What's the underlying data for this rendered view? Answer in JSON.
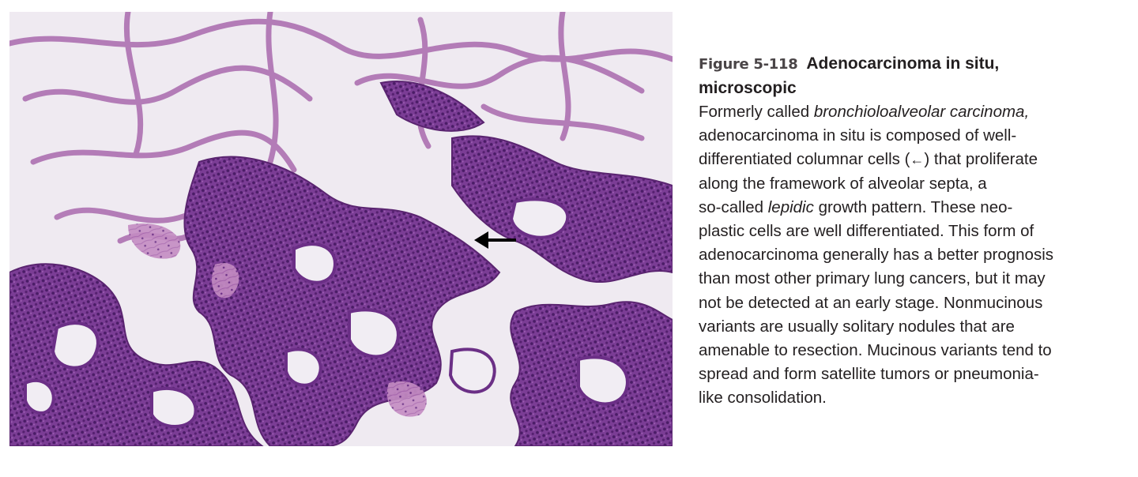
{
  "figure": {
    "number": "Figure 5-118",
    "title_line1": "Adenocarcinoma in situ,",
    "title_line2": "microscopic"
  },
  "caption": {
    "line1_pre": "Formerly called ",
    "line1_italic": "bronchioloalveolar  carcinoma,",
    "line2": "adenocarcinoma in situ is composed of well-",
    "line3_pre": "differentiated columnar cells (",
    "line3_symbol": "←",
    "line3_post": ") that proliferate",
    "line4": "along the framework of alveolar septa, a",
    "line5_pre": "so-called ",
    "line5_italic": "lepidic",
    "line5_post": " growth pattern. These neo-",
    "line6": "plastic cells are well differentiated. This form of",
    "line7": "adenocarcinoma generally has a better prognosis",
    "line8": "than most other primary lung cancers, but it may",
    "line9": "not be detected at an early stage. Nonmucinous",
    "line10": "variants are usually solitary nodules that are",
    "line11": "amenable to resection. Mucinous variants tend to",
    "line12": "spread and form satellite tumors or pneumonia-",
    "line13": "like consolidation."
  },
  "colors": {
    "tissue_dark": "#6b2f86",
    "tissue_mid": "#9a5bb0",
    "stroma_pink": "#c98fc4",
    "airspace": "#f2eef4",
    "text": "#231f20"
  }
}
